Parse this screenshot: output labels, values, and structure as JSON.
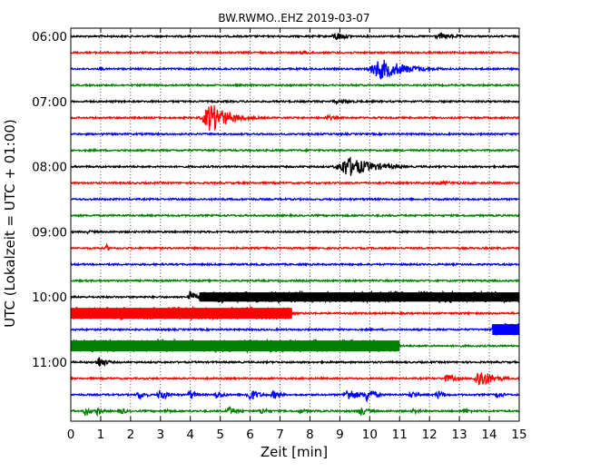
{
  "chart_data": {
    "type": "line",
    "title": "BW.RWMO..EHZ 2019-03-07",
    "xlabel": "Zeit  [min]",
    "ylabel": "UTC (Lokalzeit = UTC + 01:00)",
    "xlim": [
      0,
      15
    ],
    "x_ticks": [
      "0",
      "1",
      "2",
      "3",
      "4",
      "5",
      "6",
      "7",
      "8",
      "9",
      "10",
      "11",
      "12",
      "13",
      "14",
      "15"
    ],
    "y_ticks": [
      "06:00",
      "07:00",
      "08:00",
      "09:00",
      "10:00",
      "11:00"
    ],
    "grid": "vertical dotted lines at each minute",
    "colors": [
      "#000000",
      "#ff0000",
      "#0000ff",
      "#008000"
    ],
    "traces": [
      {
        "start": "06:00",
        "color": "#000000",
        "events": [
          {
            "t": 8.9,
            "amp": 5,
            "dur": 0.6
          },
          {
            "t": 12.4,
            "amp": 3,
            "dur": 1.2
          }
        ]
      },
      {
        "start": "06:15",
        "color": "#ff0000",
        "events": [
          {
            "t": 7.8,
            "amp": 2,
            "dur": 1.0
          }
        ]
      },
      {
        "start": "06:30",
        "color": "#0000ff",
        "events": [
          {
            "t": 10.4,
            "amp": 11,
            "dur": 1.5
          },
          {
            "t": 1.0,
            "amp": 3,
            "dur": 0.2
          }
        ]
      },
      {
        "start": "06:45",
        "color": "#008000",
        "events": []
      },
      {
        "start": "07:00",
        "color": "#000000",
        "events": [
          {
            "t": 9.0,
            "amp": 2,
            "dur": 1.5
          }
        ]
      },
      {
        "start": "07:15",
        "color": "#ff0000",
        "events": [
          {
            "t": 4.7,
            "amp": 16,
            "dur": 1.0
          },
          {
            "t": 8.6,
            "amp": 3,
            "dur": 0.5
          }
        ]
      },
      {
        "start": "07:30",
        "color": "#0000ff",
        "events": []
      },
      {
        "start": "07:45",
        "color": "#008000",
        "events": []
      },
      {
        "start": "08:00",
        "color": "#000000",
        "events": [
          {
            "t": 9.3,
            "amp": 11,
            "dur": 1.4
          }
        ]
      },
      {
        "start": "08:15",
        "color": "#ff0000",
        "events": [
          {
            "t": 12.5,
            "amp": 2,
            "dur": 1.5
          }
        ]
      },
      {
        "start": "08:30",
        "color": "#0000ff",
        "events": []
      },
      {
        "start": "08:45",
        "color": "#008000",
        "events": []
      },
      {
        "start": "09:00",
        "color": "#000000",
        "events": [
          {
            "t": 0.6,
            "amp": 3,
            "dur": 0.2
          }
        ]
      },
      {
        "start": "09:15",
        "color": "#ff0000",
        "events": [
          {
            "t": 1.2,
            "amp": 4,
            "dur": 0.2
          }
        ]
      },
      {
        "start": "09:30",
        "color": "#0000ff",
        "events": []
      },
      {
        "start": "09:45",
        "color": "#008000",
        "events": []
      },
      {
        "start": "10:00",
        "color": "#000000",
        "events": [
          {
            "t": 4.0,
            "amp": 8,
            "dur": 0.3
          }
        ],
        "bands": [
          {
            "from": 4.3,
            "to": 15.0,
            "amp": 6
          }
        ]
      },
      {
        "start": "10:15",
        "color": "#ff0000",
        "events": [
          {
            "t": 4.0,
            "amp": 10,
            "dur": 0.3
          }
        ],
        "bands": [
          {
            "from": 0.0,
            "to": 7.4,
            "amp": 7
          }
        ]
      },
      {
        "start": "10:30",
        "color": "#0000ff",
        "events": [],
        "bands": [
          {
            "from": 14.1,
            "to": 15.0,
            "amp": 7
          }
        ]
      },
      {
        "start": "10:45",
        "color": "#008000",
        "events": [
          {
            "t": 5.0,
            "amp": 9,
            "dur": 0.4
          }
        ],
        "bands": [
          {
            "from": 0.0,
            "to": 11.0,
            "amp": 7
          }
        ]
      },
      {
        "start": "11:00",
        "color": "#000000",
        "events": [
          {
            "t": 0.95,
            "amp": 7,
            "dur": 0.4
          }
        ]
      },
      {
        "start": "11:15",
        "color": "#ff0000",
        "events": [
          {
            "t": 12.6,
            "amp": 4,
            "dur": 0.7
          },
          {
            "t": 13.7,
            "amp": 11,
            "dur": 0.7
          }
        ]
      },
      {
        "start": "11:30",
        "color": "#0000ff",
        "events": [
          {
            "t": 2.3,
            "amp": 5,
            "dur": 0.4
          },
          {
            "t": 3.0,
            "amp": 7,
            "dur": 0.4
          },
          {
            "t": 4.0,
            "amp": 6,
            "dur": 0.3
          },
          {
            "t": 4.9,
            "amp": 5,
            "dur": 0.4
          },
          {
            "t": 6.0,
            "amp": 7,
            "dur": 0.5
          },
          {
            "t": 6.8,
            "amp": 5,
            "dur": 0.4
          },
          {
            "t": 9.3,
            "amp": 7,
            "dur": 0.6
          },
          {
            "t": 9.9,
            "amp": 8,
            "dur": 0.5
          },
          {
            "t": 11.4,
            "amp": 4,
            "dur": 0.4
          },
          {
            "t": 12.3,
            "amp": 5,
            "dur": 0.4
          },
          {
            "t": 14.3,
            "amp": 4,
            "dur": 0.4
          }
        ]
      },
      {
        "start": "11:45",
        "color": "#008000",
        "events": [
          {
            "t": 0.5,
            "amp": 6,
            "dur": 0.3
          },
          {
            "t": 0.9,
            "amp": 5,
            "dur": 0.3
          },
          {
            "t": 1.7,
            "amp": 4,
            "dur": 0.3
          },
          {
            "t": 3.2,
            "amp": 3,
            "dur": 0.3
          },
          {
            "t": 5.3,
            "amp": 5,
            "dur": 0.5
          },
          {
            "t": 6.4,
            "amp": 4,
            "dur": 0.4
          },
          {
            "t": 7.7,
            "amp": 3,
            "dur": 0.4
          },
          {
            "t": 9.7,
            "amp": 5,
            "dur": 0.5
          },
          {
            "t": 11.5,
            "amp": 3,
            "dur": 0.4
          },
          {
            "t": 13.2,
            "amp": 3,
            "dur": 0.4
          }
        ]
      }
    ]
  }
}
